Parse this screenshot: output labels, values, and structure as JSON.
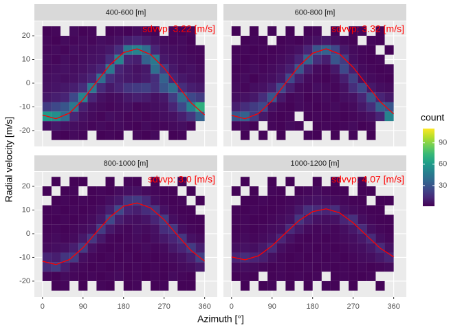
{
  "chart_data": {
    "type": "bin2d",
    "x_label": "Azimuth [°]",
    "y_label": "Radial velocity [m/s]",
    "xlim": [
      -18,
      388
    ],
    "xticks": [
      0,
      90,
      180,
      270,
      360
    ],
    "ylim": [
      -26.7,
      26.1
    ],
    "yticks": [
      -20,
      -10,
      0,
      10,
      20
    ],
    "grid": true,
    "xbins": [
      0,
      20,
      40,
      60,
      80,
      100,
      120,
      140,
      160,
      180,
      200,
      220,
      240,
      260,
      280,
      300,
      320,
      340,
      360
    ],
    "ybins": [
      -24,
      -20,
      -16,
      -12,
      -8,
      -4,
      0,
      4,
      8,
      12,
      16,
      20,
      24
    ],
    "fit_color": "#ff0000",
    "legend": {
      "title": "count",
      "lim": [
        1,
        110
      ],
      "ticks": [
        30,
        60,
        90
      ],
      "position": "right",
      "palette": [
        "#440154",
        "#482878",
        "#3e4989",
        "#31688e",
        "#26828e",
        "#1f9e89",
        "#35b779",
        "#6ece58",
        "#b5de2b",
        "#fde725"
      ]
    },
    "facets": [
      {
        "label": "400-600 [m]",
        "annotation": "sdvvp: 3.22 [m/s]",
        "fit_x": [
          0,
          30,
          60,
          90,
          120,
          150,
          180,
          210,
          240,
          270,
          300,
          330,
          360
        ],
        "fit_values": [
          -13.4,
          -15.0,
          -12.6,
          -6.9,
          0.5,
          7.8,
          12.9,
          14.5,
          12.1,
          6.4,
          -1.0,
          -8.3,
          -13.4
        ],
        "counts": [
          [
            null,
            3,
            2,
            4,
            3,
            null,
            2,
            3,
            2,
            null,
            3,
            2,
            4,
            null,
            2,
            3,
            null,
            null
          ],
          [
            5,
            8,
            6,
            5,
            4,
            3,
            4,
            3,
            4,
            3,
            2,
            4,
            3,
            3,
            4,
            5,
            3,
            null
          ],
          [
            60,
            55,
            40,
            12,
            6,
            4,
            3,
            5,
            4,
            3,
            4,
            3,
            4,
            5,
            6,
            10,
            18,
            35
          ],
          [
            20,
            25,
            30,
            45,
            10,
            5,
            4,
            3,
            4,
            5,
            3,
            4,
            5,
            6,
            12,
            25,
            50,
            70
          ],
          [
            8,
            10,
            12,
            25,
            50,
            12,
            6,
            4,
            5,
            8,
            10,
            9,
            6,
            8,
            20,
            40,
            25,
            20
          ],
          [
            6,
            7,
            8,
            10,
            15,
            45,
            14,
            8,
            12,
            18,
            20,
            22,
            16,
            30,
            40,
            15,
            10,
            8
          ],
          [
            5,
            6,
            5,
            6,
            8,
            12,
            40,
            15,
            10,
            8,
            7,
            9,
            15,
            35,
            12,
            8,
            6,
            5
          ],
          [
            4,
            5,
            6,
            5,
            6,
            8,
            12,
            45,
            12,
            8,
            6,
            8,
            40,
            20,
            8,
            5,
            6,
            4
          ],
          [
            4,
            3,
            5,
            4,
            5,
            6,
            7,
            15,
            50,
            12,
            10,
            35,
            45,
            8,
            6,
            5,
            4,
            3
          ],
          [
            3,
            4,
            3,
            5,
            4,
            5,
            6,
            8,
            15,
            45,
            50,
            40,
            12,
            6,
            5,
            4,
            3,
            3
          ],
          [
            3,
            2,
            4,
            3,
            4,
            3,
            5,
            4,
            6,
            10,
            12,
            9,
            6,
            4,
            3,
            4,
            2,
            null
          ],
          [
            2,
            3,
            null,
            4,
            2,
            3,
            null,
            2,
            3,
            2,
            4,
            3,
            2,
            null,
            3,
            2,
            3,
            null
          ]
        ]
      },
      {
        "label": "600-800 [m]",
        "annotation": "sdvvp: 3.32 [m/s]",
        "fit_x": [
          0,
          30,
          60,
          90,
          120,
          150,
          180,
          210,
          240,
          270,
          300,
          330,
          360
        ],
        "fit_values": [
          -13.6,
          -15.0,
          -12.8,
          -7.4,
          0.0,
          7.3,
          12.6,
          14.5,
          12.3,
          6.7,
          -0.6,
          -7.8,
          -13.0
        ],
        "counts": [
          [
            null,
            2,
            null,
            3,
            null,
            2,
            null,
            null,
            3,
            2,
            null,
            2,
            null,
            3,
            null,
            2,
            null,
            null
          ],
          [
            3,
            4,
            2,
            null,
            3,
            2,
            4,
            3,
            null,
            2,
            3,
            2,
            3,
            4,
            2,
            3,
            null,
            null
          ],
          [
            30,
            35,
            20,
            8,
            3,
            2,
            3,
            null,
            2,
            3,
            2,
            3,
            2,
            3,
            4,
            6,
            12,
            50
          ],
          [
            10,
            15,
            20,
            25,
            6,
            3,
            2,
            4,
            3,
            2,
            3,
            4,
            3,
            4,
            8,
            15,
            35,
            30
          ],
          [
            5,
            6,
            8,
            15,
            30,
            8,
            3,
            4,
            2,
            3,
            4,
            3,
            5,
            6,
            12,
            30,
            12,
            8
          ],
          [
            4,
            3,
            5,
            6,
            10,
            25,
            10,
            4,
            3,
            5,
            4,
            3,
            6,
            15,
            25,
            8,
            5,
            4
          ],
          [
            3,
            4,
            2,
            4,
            5,
            8,
            25,
            10,
            4,
            3,
            2,
            4,
            10,
            22,
            6,
            4,
            3,
            2
          ],
          [
            2,
            3,
            4,
            3,
            4,
            6,
            10,
            30,
            10,
            4,
            3,
            8,
            25,
            10,
            4,
            3,
            2,
            3
          ],
          [
            3,
            2,
            3,
            2,
            3,
            4,
            6,
            12,
            35,
            15,
            10,
            30,
            20,
            5,
            3,
            2,
            3,
            null
          ],
          [
            2,
            3,
            2,
            3,
            2,
            3,
            4,
            6,
            12,
            30,
            35,
            25,
            8,
            4,
            3,
            2,
            null,
            2
          ],
          [
            null,
            2,
            3,
            2,
            null,
            2,
            3,
            2,
            4,
            6,
            8,
            5,
            3,
            2,
            null,
            3,
            2,
            null
          ],
          [
            2,
            null,
            2,
            null,
            3,
            null,
            2,
            null,
            2,
            3,
            null,
            2,
            null,
            2,
            3,
            null,
            2,
            null
          ]
        ]
      },
      {
        "label": "800-1000 [m]",
        "annotation": "sdvvp: 3.0 [m/s]",
        "fit_x": [
          0,
          30,
          60,
          90,
          120,
          150,
          180,
          210,
          240,
          270,
          300,
          330,
          360
        ],
        "fit_values": [
          -11.6,
          -13.0,
          -10.9,
          -5.9,
          0.7,
          7.1,
          11.6,
          13.0,
          10.9,
          5.9,
          -0.7,
          -7.1,
          -11.6
        ],
        "counts": [
          [
            null,
            2,
            3,
            null,
            2,
            null,
            3,
            2,
            null,
            2,
            3,
            null,
            2,
            3,
            null,
            2,
            2,
            null
          ],
          [
            3,
            2,
            4,
            3,
            2,
            3,
            2,
            3,
            4,
            2,
            3,
            2,
            3,
            2,
            4,
            3,
            2,
            null
          ],
          [
            15,
            20,
            10,
            4,
            3,
            2,
            3,
            2,
            3,
            2,
            3,
            2,
            3,
            2,
            3,
            4,
            5,
            8
          ],
          [
            12,
            10,
            18,
            20,
            5,
            3,
            2,
            3,
            2,
            3,
            2,
            3,
            2,
            3,
            4,
            6,
            10,
            22
          ],
          [
            4,
            5,
            6,
            10,
            20,
            6,
            3,
            2,
            3,
            2,
            3,
            4,
            3,
            4,
            8,
            12,
            20,
            10
          ],
          [
            3,
            4,
            3,
            4,
            8,
            18,
            8,
            3,
            2,
            3,
            4,
            3,
            5,
            8,
            12,
            18,
            6,
            4
          ],
          [
            2,
            3,
            2,
            3,
            4,
            6,
            20,
            8,
            4,
            3,
            5,
            4,
            6,
            15,
            18,
            5,
            3,
            2
          ],
          [
            2,
            2,
            3,
            2,
            3,
            4,
            8,
            25,
            10,
            6,
            5,
            7,
            12,
            20,
            5,
            3,
            2,
            2
          ],
          [
            2,
            3,
            2,
            3,
            2,
            3,
            5,
            10,
            25,
            12,
            10,
            15,
            18,
            6,
            3,
            2,
            2,
            null
          ],
          [
            null,
            2,
            3,
            2,
            3,
            2,
            3,
            5,
            8,
            18,
            20,
            14,
            5,
            3,
            2,
            3,
            null,
            2
          ],
          [
            2,
            null,
            2,
            3,
            null,
            2,
            3,
            2,
            4,
            5,
            6,
            4,
            3,
            2,
            2,
            null,
            2,
            null
          ],
          [
            null,
            2,
            null,
            2,
            2,
            null,
            null,
            2,
            null,
            3,
            2,
            null,
            2,
            null,
            null,
            2,
            null,
            null
          ]
        ]
      },
      {
        "label": "1000-1200 [m]",
        "annotation": "sdvvp: 4.07 [m/s]",
        "fit_x": [
          0,
          30,
          60,
          90,
          120,
          150,
          180,
          210,
          240,
          270,
          300,
          330,
          360
        ],
        "fit_values": [
          -9.8,
          -11.0,
          -9.3,
          -5.1,
          0.3,
          5.6,
          9.3,
          10.5,
          8.8,
          4.6,
          -0.8,
          -6.1,
          -9.8
        ],
        "counts": [
          [
            null,
            2,
            null,
            2,
            3,
            null,
            2,
            null,
            2,
            null,
            3,
            2,
            null,
            2,
            null,
            null,
            2,
            null
          ],
          [
            2,
            3,
            2,
            null,
            2,
            3,
            2,
            3,
            2,
            3,
            null,
            2,
            3,
            2,
            2,
            3,
            null,
            null
          ],
          [
            4,
            5,
            4,
            3,
            2,
            3,
            2,
            2,
            3,
            2,
            3,
            2,
            3,
            2,
            3,
            2,
            3,
            4
          ],
          [
            12,
            15,
            12,
            10,
            5,
            3,
            2,
            3,
            2,
            3,
            2,
            3,
            2,
            3,
            4,
            5,
            8,
            12
          ],
          [
            5,
            6,
            5,
            8,
            14,
            5,
            3,
            2,
            3,
            2,
            3,
            2,
            3,
            4,
            5,
            8,
            14,
            6
          ],
          [
            3,
            4,
            3,
            4,
            6,
            12,
            6,
            3,
            2,
            3,
            2,
            3,
            4,
            5,
            8,
            14,
            5,
            3
          ],
          [
            2,
            3,
            2,
            3,
            4,
            5,
            14,
            8,
            4,
            3,
            4,
            3,
            5,
            8,
            14,
            5,
            3,
            2
          ],
          [
            2,
            3,
            2,
            2,
            3,
            4,
            6,
            18,
            10,
            6,
            5,
            6,
            12,
            16,
            5,
            3,
            2,
            2
          ],
          [
            2,
            2,
            3,
            2,
            2,
            3,
            4,
            8,
            16,
            14,
            12,
            15,
            6,
            4,
            3,
            2,
            2,
            null
          ],
          [
            null,
            2,
            2,
            3,
            2,
            2,
            3,
            4,
            5,
            6,
            5,
            4,
            3,
            2,
            2,
            null,
            2,
            2
          ],
          [
            2,
            null,
            2,
            null,
            3,
            2,
            null,
            2,
            3,
            4,
            3,
            2,
            2,
            null,
            2,
            2,
            null,
            null
          ],
          [
            null,
            2,
            null,
            null,
            2,
            null,
            2,
            null,
            null,
            2,
            null,
            2,
            null,
            null,
            2,
            null,
            null,
            null
          ]
        ]
      }
    ]
  }
}
